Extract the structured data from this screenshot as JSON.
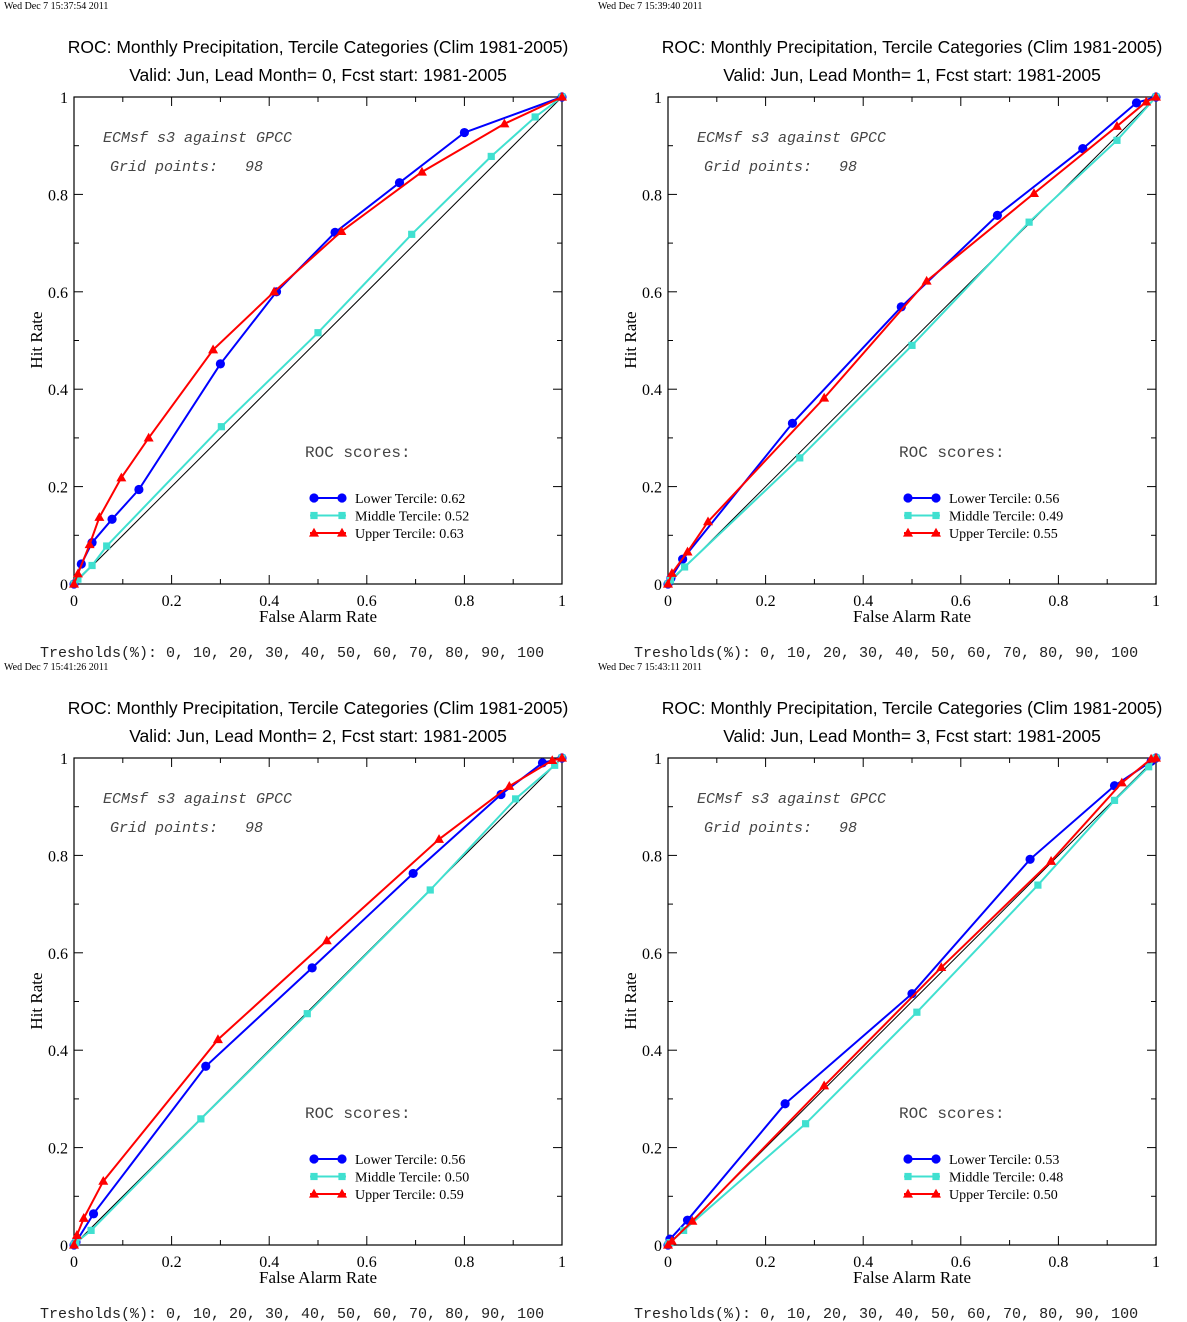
{
  "chart_data": [
    {
      "type": "line",
      "timestamp": "Wed Dec  7 15:37:54 2011",
      "title": "ROC: Monthly Precipitation, Tercile Categories (Clim 1981-2005)",
      "subtitle": "Valid: Jun, Lead Month= 0, Fcst start: 1981-2005",
      "xlabel": "False Alarm Rate",
      "ylabel": "Hit Rate",
      "xlim": [
        0,
        1
      ],
      "ylim": [
        0,
        1
      ],
      "xticks": [
        "0",
        "0.2",
        "0.4",
        "0.6",
        "0.8",
        "1"
      ],
      "yticks": [
        "0",
        "0.2",
        "0.4",
        "0.6",
        "0.8",
        "1"
      ],
      "annotation_line1": "ECMsf s3 against GPCC",
      "annotation_line2": "Grid points:   98",
      "scores_title": "ROC scores:",
      "thresholds": "Tresholds(%): 0, 10, 20, 30, 40, 50, 60, 70, 80, 90, 100",
      "legend_position": "bottom-right",
      "series": [
        {
          "name": "Lower Tercile: 0.62",
          "color": "#0000ff",
          "marker": "circle",
          "x": [
            0,
            0.015,
            0.037,
            0.078,
            0.133,
            0.3,
            0.415,
            0.535,
            0.667,
            0.8,
            1
          ],
          "y": [
            0,
            0.041,
            0.085,
            0.133,
            0.194,
            0.452,
            0.6,
            0.722,
            0.824,
            0.927,
            1
          ]
        },
        {
          "name": "Middle Tercile: 0.52",
          "color": "#40e0d0",
          "marker": "square",
          "x": [
            0,
            0.008,
            0.037,
            0.067,
            0.302,
            0.5,
            0.692,
            0.855,
            0.945,
            1
          ],
          "y": [
            0,
            0.01,
            0.038,
            0.078,
            0.323,
            0.516,
            0.718,
            0.878,
            0.959,
            1
          ]
        },
        {
          "name": "Upper Tercile: 0.63",
          "color": "#ff0000",
          "marker": "triangle",
          "x": [
            0,
            0.008,
            0.032,
            0.052,
            0.097,
            0.153,
            0.285,
            0.41,
            0.548,
            0.713,
            0.882,
            1
          ],
          "y": [
            0,
            0.021,
            0.081,
            0.137,
            0.218,
            0.3,
            0.481,
            0.6,
            0.724,
            0.846,
            0.945,
            1
          ]
        }
      ]
    },
    {
      "type": "line",
      "timestamp": "Wed Dec  7 15:39:40 2011",
      "title": "ROC: Monthly Precipitation, Tercile Categories (Clim 1981-2005)",
      "subtitle": "Valid: Jun, Lead Month= 1, Fcst start: 1981-2005",
      "xlabel": "False Alarm Rate",
      "ylabel": "Hit Rate",
      "xlim": [
        0,
        1
      ],
      "ylim": [
        0,
        1
      ],
      "xticks": [
        "0",
        "0.2",
        "0.4",
        "0.6",
        "0.8",
        "1"
      ],
      "yticks": [
        "0",
        "0.2",
        "0.4",
        "0.6",
        "0.8",
        "1"
      ],
      "annotation_line1": "ECMsf s3 against GPCC",
      "annotation_line2": "Grid points:   98",
      "scores_title": "ROC scores:",
      "thresholds": "Tresholds(%): 0, 10, 20, 30, 40, 50, 60, 70, 80, 90, 100",
      "legend_position": "bottom-right",
      "series": [
        {
          "name": "Lower Tercile: 0.56",
          "color": "#0000ff",
          "marker": "circle",
          "x": [
            0,
            0.006,
            0.03,
            0.255,
            0.478,
            0.675,
            0.85,
            0.96,
            1
          ],
          "y": [
            0,
            0.012,
            0.051,
            0.33,
            0.569,
            0.757,
            0.894,
            0.988,
            1
          ]
        },
        {
          "name": "Middle Tercile: 0.49",
          "color": "#40e0d0",
          "marker": "square",
          "x": [
            0,
            0.005,
            0.034,
            0.27,
            0.5,
            0.74,
            0.92,
            1
          ],
          "y": [
            0,
            0.008,
            0.035,
            0.259,
            0.49,
            0.743,
            0.911,
            1
          ]
        },
        {
          "name": "Upper Tercile: 0.55",
          "color": "#ff0000",
          "marker": "triangle",
          "x": [
            0,
            0.008,
            0.04,
            0.082,
            0.32,
            0.53,
            0.75,
            0.92,
            0.98,
            1
          ],
          "y": [
            0,
            0.022,
            0.066,
            0.128,
            0.382,
            0.622,
            0.802,
            0.94,
            0.99,
            1
          ]
        }
      ]
    },
    {
      "type": "line",
      "timestamp": "Wed Dec  7 15:41:26 2011",
      "title": "ROC: Monthly Precipitation, Tercile Categories (Clim 1981-2005)",
      "subtitle": "Valid: Jun, Lead Month= 2, Fcst start: 1981-2005",
      "xlabel": "False Alarm Rate",
      "ylabel": "Hit Rate",
      "xlim": [
        0,
        1
      ],
      "ylim": [
        0,
        1
      ],
      "xticks": [
        "0",
        "0.2",
        "0.4",
        "0.6",
        "0.8",
        "1"
      ],
      "yticks": [
        "0",
        "0.2",
        "0.4",
        "0.6",
        "0.8",
        "1"
      ],
      "annotation_line1": "ECMsf s3 against GPCC",
      "annotation_line2": "Grid points:   98",
      "scores_title": "ROC scores:",
      "thresholds": "Tresholds(%): 0, 10, 20, 30, 40, 50, 60, 70, 80, 90, 100",
      "legend_position": "bottom-right",
      "series": [
        {
          "name": "Lower Tercile: 0.56",
          "color": "#0000ff",
          "marker": "circle",
          "x": [
            0,
            0.004,
            0.04,
            0.27,
            0.488,
            0.695,
            0.875,
            0.96,
            1
          ],
          "y": [
            0,
            0.006,
            0.064,
            0.367,
            0.569,
            0.763,
            0.925,
            0.99,
            1
          ]
        },
        {
          "name": "Middle Tercile: 0.50",
          "color": "#40e0d0",
          "marker": "square",
          "x": [
            0,
            0.004,
            0.035,
            0.26,
            0.478,
            0.73,
            0.905,
            0.985,
            1
          ],
          "y": [
            0,
            0.005,
            0.03,
            0.259,
            0.475,
            0.729,
            0.916,
            0.985,
            1
          ]
        },
        {
          "name": "Upper Tercile: 0.59",
          "color": "#ff0000",
          "marker": "triangle",
          "x": [
            0,
            0.006,
            0.02,
            0.06,
            0.295,
            0.518,
            0.748,
            0.892,
            0.98,
            1
          ],
          "y": [
            0,
            0.02,
            0.055,
            0.131,
            0.422,
            0.625,
            0.833,
            0.942,
            0.995,
            1
          ]
        }
      ]
    },
    {
      "type": "line",
      "timestamp": "Wed Dec  7 15:43:11 2011",
      "title": "ROC: Monthly Precipitation, Tercile Categories (Clim 1981-2005)",
      "subtitle": "Valid: Jun, Lead Month= 3, Fcst start: 1981-2005",
      "xlabel": "False Alarm Rate",
      "ylabel": "Hit Rate",
      "xlim": [
        0,
        1
      ],
      "ylim": [
        0,
        1
      ],
      "xticks": [
        "0",
        "0.2",
        "0.4",
        "0.6",
        "0.8",
        "1"
      ],
      "yticks": [
        "0",
        "0.2",
        "0.4",
        "0.6",
        "0.8",
        "1"
      ],
      "annotation_line1": "ECMsf s3 against GPCC",
      "annotation_line2": "Grid points:   98",
      "scores_title": "ROC scores:",
      "thresholds": "Tresholds(%): 0, 10, 20, 30, 40, 50, 60, 70, 80, 90, 100",
      "legend_position": "bottom-right",
      "series": [
        {
          "name": "Lower Tercile: 0.53",
          "color": "#0000ff",
          "marker": "circle",
          "x": [
            0,
            0.004,
            0.04,
            0.24,
            0.5,
            0.742,
            0.915,
            0.99,
            1
          ],
          "y": [
            0,
            0.012,
            0.051,
            0.29,
            0.516,
            0.792,
            0.943,
            0.993,
            1
          ]
        },
        {
          "name": "Middle Tercile: 0.48",
          "color": "#40e0d0",
          "marker": "square",
          "x": [
            0,
            0.004,
            0.032,
            0.282,
            0.51,
            0.758,
            0.915,
            0.985,
            1
          ],
          "y": [
            0,
            0.005,
            0.03,
            0.249,
            0.478,
            0.739,
            0.913,
            0.982,
            1
          ]
        },
        {
          "name": "Upper Tercile: 0.50",
          "color": "#ff0000",
          "marker": "triangle",
          "x": [
            0,
            0.008,
            0.05,
            0.32,
            0.56,
            0.785,
            0.93,
            0.99,
            1
          ],
          "y": [
            0,
            0.008,
            0.049,
            0.327,
            0.57,
            0.788,
            0.949,
            0.998,
            1
          ]
        }
      ]
    }
  ]
}
